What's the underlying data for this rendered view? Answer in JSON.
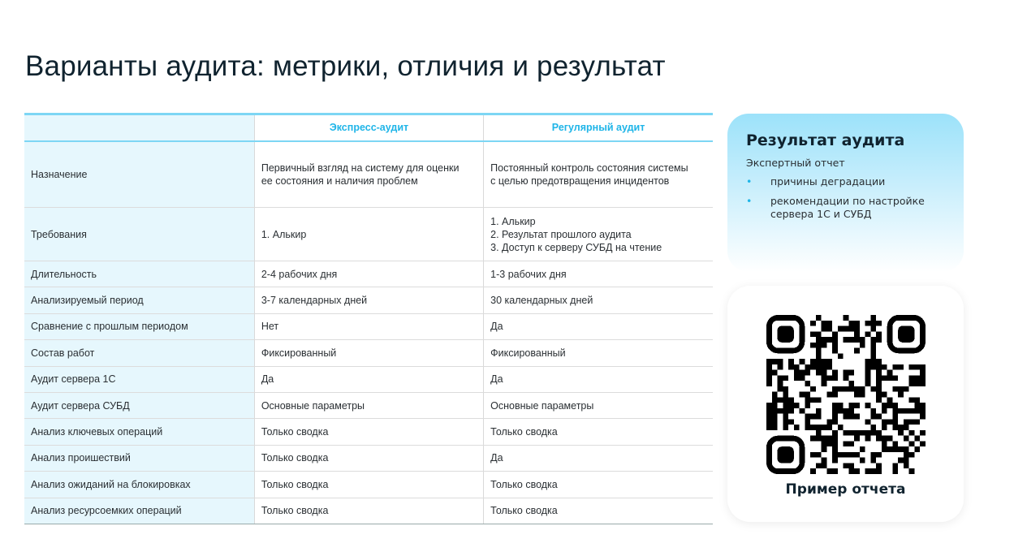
{
  "title": "Варианты аудита: метрики, отличия и результат",
  "table": {
    "headers": [
      "",
      "Экспресс-аудит",
      "Регулярный аудит"
    ],
    "rows": [
      {
        "label": "Назначение",
        "express": "Первичный взгляд на систему для оценки\nее состояния и наличия проблем",
        "regular": "Постоянный контроль состояния системы\nс целью предотвращения инцидентов"
      },
      {
        "label": "Требования",
        "express": "1. Алькир",
        "regular": "1. Алькир\n2. Результат прошлого аудита\n3. Доступ к серверу СУБД на чтение"
      },
      {
        "label": "Длительность",
        "express": "2-4 рабочих дня",
        "regular": "1-3 рабочих дня"
      },
      {
        "label": "Анализируемый период",
        "express": "3-7 календарных дней",
        "regular": "30 календарных дней"
      },
      {
        "label": "Сравнение с прошлым периодом",
        "express": "Нет",
        "regular": "Да"
      },
      {
        "label": "Состав работ",
        "express": "Фиксированный",
        "regular": "Фиксированный"
      },
      {
        "label": "Аудит сервера 1С",
        "express": "Да",
        "regular": "Да"
      },
      {
        "label": "Аудит сервера СУБД",
        "express": "Основные параметры",
        "regular": "Основные параметры"
      },
      {
        "label": "Анализ ключевых операций",
        "express": "Только сводка",
        "regular": "Только сводка"
      },
      {
        "label": "Анализ проишествий",
        "express": "Только сводка",
        "regular": "Да"
      },
      {
        "label": "Анализ ожиданий на блокировках",
        "express": "Только сводка",
        "regular": "Только сводка"
      },
      {
        "label": "Анализ ресурсоемких операций",
        "express": "Только сводка",
        "regular": "Только сводка"
      }
    ]
  },
  "result_card": {
    "title": "Результат аудита",
    "subtitle": "Экспертный отчет",
    "bullet": "•",
    "items": [
      "причины деградации",
      "рекомендации по настройке\nсервера 1С и СУБД"
    ]
  },
  "qr_card": {
    "caption": "Пример отчета"
  },
  "colors": {
    "accent": "#1fb5e8",
    "label_bg": "#e6f7fd",
    "title": "#10232f"
  }
}
